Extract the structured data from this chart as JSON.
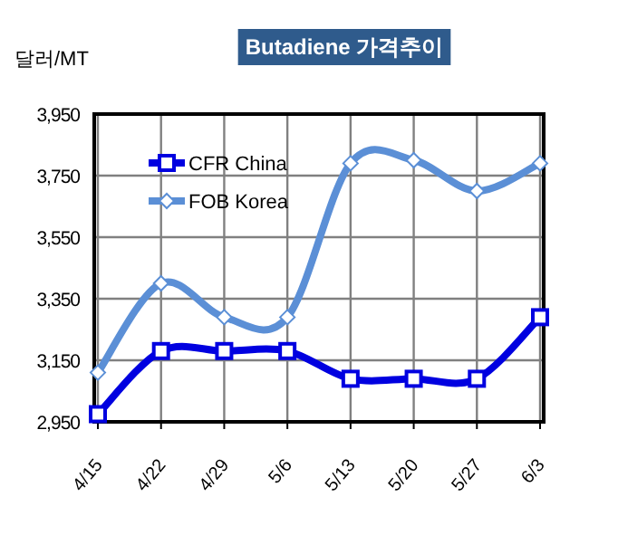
{
  "chart_data": {
    "type": "line",
    "title": "Butadiene 가격추이",
    "ylabel": "달러/MT",
    "categories": [
      "4/15",
      "4/22",
      "4/29",
      "5/6",
      "5/13",
      "5/20",
      "5/27",
      "6/3"
    ],
    "series": [
      {
        "name": "CFR China",
        "color": "#0000e0",
        "marker": "square",
        "values": [
          2975,
          3180,
          3180,
          3180,
          3090,
          3090,
          3090,
          3290
        ]
      },
      {
        "name": "FOB Korea",
        "color": "#5b8fd6",
        "marker": "diamond",
        "values": [
          3110,
          3400,
          3290,
          3290,
          3790,
          3800,
          3700,
          3790
        ]
      }
    ],
    "ylim": [
      2950,
      3950
    ],
    "yticks": [
      {
        "value": 2950,
        "label": "2,950"
      },
      {
        "value": 3150,
        "label": "3,150"
      },
      {
        "value": 3350,
        "label": "3,350"
      },
      {
        "value": 3550,
        "label": "3,550"
      },
      {
        "value": 3750,
        "label": "3,750"
      },
      {
        "value": 3950,
        "label": "3,950"
      }
    ],
    "grid": true,
    "legend": "top left"
  }
}
